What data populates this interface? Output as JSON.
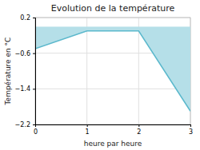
{
  "chart_data": {
    "type": "line",
    "title": "Evolution de la température",
    "xlabel": "heure par heure",
    "ylabel": "Température en °C",
    "x": [
      0,
      1,
      2,
      3
    ],
    "values": [
      -0.5,
      -0.1,
      -0.1,
      -1.9
    ],
    "color": "#5bb8cc",
    "xlim": [
      0,
      3
    ],
    "ylim": [
      -2.2,
      0.2
    ],
    "xticks": [
      0,
      1,
      2,
      3
    ],
    "yticks": [
      0.2,
      {
        "value": -0.6,
        "label": "−0.6"
      },
      {
        "value": -1.4,
        "label": "−1.4"
      },
      {
        "value": -2.2,
        "label": "−2.2"
      }
    ],
    "grid": true
  }
}
